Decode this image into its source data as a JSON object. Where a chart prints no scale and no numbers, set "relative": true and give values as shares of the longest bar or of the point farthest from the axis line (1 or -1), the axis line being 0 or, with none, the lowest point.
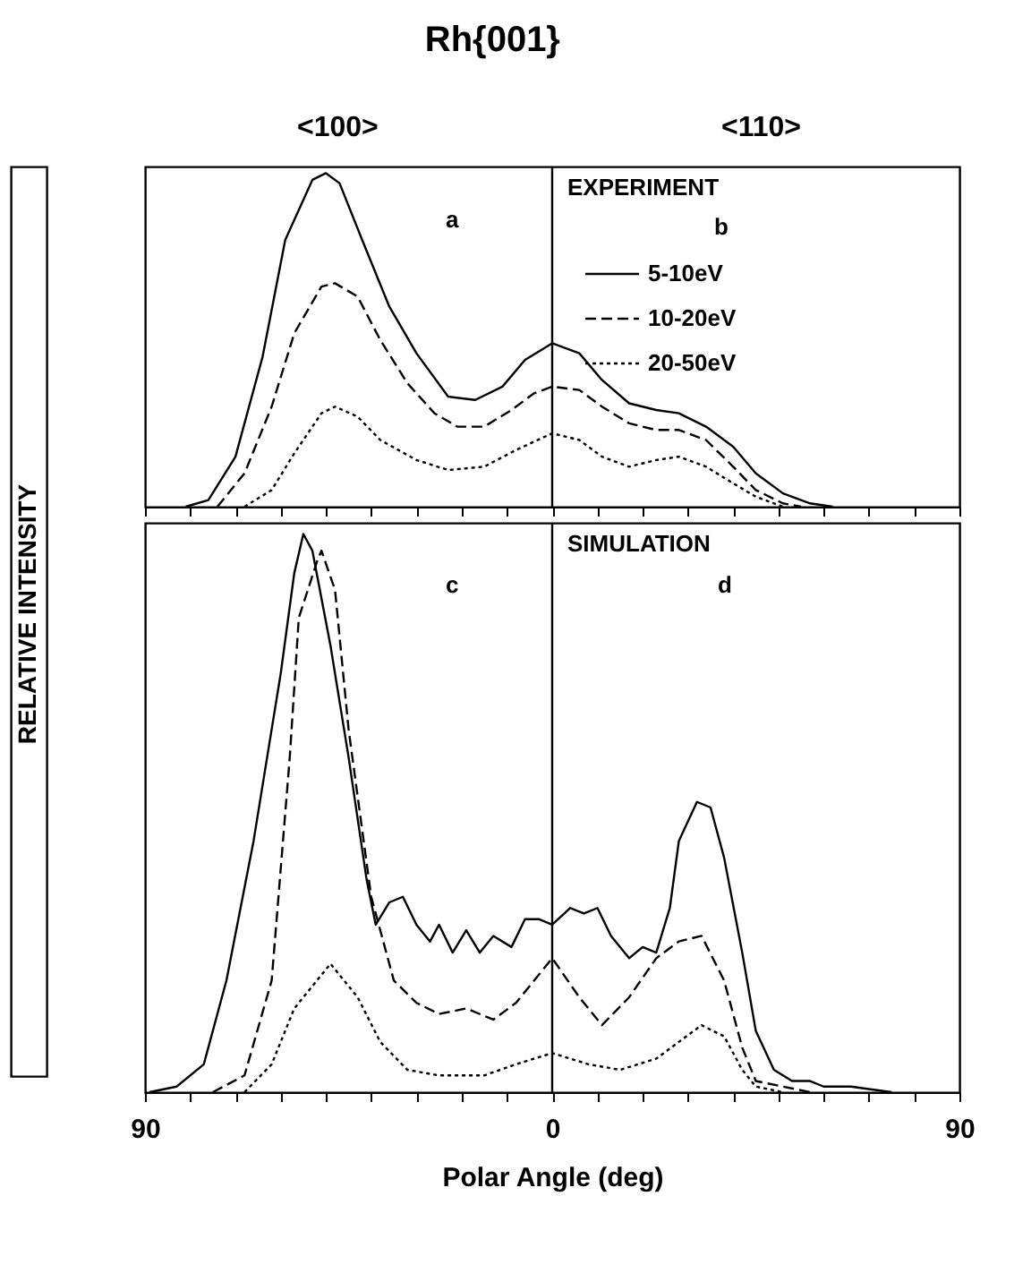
{
  "chart_data": [
    {
      "type": "line",
      "title": "Rh{001}",
      "ylabel": "RELATIVE INTENSITY",
      "relative": true,
      "legend": "top right",
      "tick_labels": false,
      "annotations": [
        "<100>",
        "<110>",
        "EXPERIMENT",
        "a",
        "b"
      ],
      "xlim": [
        -90,
        90
      ],
      "xticks": [
        {
          "value": -90,
          "label": null
        },
        {
          "value": -80,
          "label": null
        },
        {
          "value": -70,
          "label": null
        },
        {
          "value": -60,
          "label": null
        },
        {
          "value": -50,
          "label": null
        },
        {
          "value": -40,
          "label": null
        },
        {
          "value": -30,
          "label": null
        },
        {
          "value": -20,
          "label": null
        },
        {
          "value": -10,
          "label": null
        },
        {
          "value": 0,
          "label": null
        },
        {
          "value": 10,
          "label": null
        },
        {
          "value": 20,
          "label": null
        },
        {
          "value": 30,
          "label": null
        },
        {
          "value": 40,
          "label": null
        },
        {
          "value": 50,
          "label": null
        },
        {
          "value": 60,
          "label": null
        },
        {
          "value": 70,
          "label": null
        },
        {
          "value": 80,
          "label": null
        },
        {
          "value": 90,
          "label": null
        }
      ],
      "ref_lines": [
        {
          "axis": "x",
          "value": 0,
          "color": "#000000"
        }
      ],
      "series": [
        {
          "name": "5-10eV",
          "color": "#000000",
          "line_style": "solid",
          "x": [
            -81,
            -76,
            -70,
            -64,
            -59,
            -53,
            -50,
            -47,
            -42,
            -36,
            -30,
            -23,
            -17,
            -11,
            -6,
            0,
            6,
            11,
            17,
            23,
            28,
            34,
            40,
            45,
            51,
            57,
            62
          ],
          "values": [
            0,
            0.02,
            0.15,
            0.45,
            0.8,
            0.98,
            1.0,
            0.97,
            0.8,
            0.6,
            0.46,
            0.33,
            0.32,
            0.36,
            0.44,
            0.49,
            0.46,
            0.38,
            0.31,
            0.29,
            0.28,
            0.24,
            0.18,
            0.1,
            0.04,
            0.01,
            0
          ]
        },
        {
          "name": "10-20eV",
          "color": "#000000",
          "line_style": "dashed",
          "x": [
            -74,
            -68,
            -62,
            -57,
            -51,
            -48,
            -43,
            -38,
            -32,
            -26,
            -21,
            -15,
            -9,
            -4,
            0,
            6,
            11,
            17,
            23,
            28,
            34,
            40,
            45,
            51,
            55
          ],
          "values": [
            0,
            0.1,
            0.3,
            0.52,
            0.66,
            0.67,
            0.63,
            0.5,
            0.37,
            0.28,
            0.24,
            0.24,
            0.29,
            0.34,
            0.36,
            0.35,
            0.3,
            0.25,
            0.23,
            0.23,
            0.2,
            0.12,
            0.05,
            0.01,
            0
          ]
        },
        {
          "name": "20-50eV",
          "color": "#000000",
          "line_style": "dotted",
          "x": [
            -68,
            -62,
            -57,
            -51,
            -48,
            -43,
            -38,
            -30,
            -23,
            -15,
            -8,
            0,
            6,
            11,
            17,
            23,
            28,
            34,
            40,
            45,
            51
          ],
          "values": [
            0,
            0.05,
            0.16,
            0.28,
            0.3,
            0.27,
            0.2,
            0.14,
            0.11,
            0.12,
            0.17,
            0.22,
            0.2,
            0.15,
            0.12,
            0.14,
            0.15,
            0.12,
            0.07,
            0.03,
            0
          ]
        }
      ]
    },
    {
      "type": "line",
      "xlabel": "Polar Angle (deg)",
      "relative": true,
      "tick_labels": "x",
      "annotations": [
        "SIMULATION",
        "c",
        "d"
      ],
      "xlim": [
        -90,
        90
      ],
      "xticks": [
        {
          "value": -90,
          "label": "90"
        },
        {
          "value": -80,
          "label": null
        },
        {
          "value": -70,
          "label": null
        },
        {
          "value": -60,
          "label": null
        },
        {
          "value": -50,
          "label": null
        },
        {
          "value": -40,
          "label": null
        },
        {
          "value": -30,
          "label": null
        },
        {
          "value": -20,
          "label": null
        },
        {
          "value": -10,
          "label": null
        },
        0,
        {
          "value": 10,
          "label": null
        },
        {
          "value": 20,
          "label": null
        },
        {
          "value": 30,
          "label": null
        },
        {
          "value": 40,
          "label": null
        },
        {
          "value": 50,
          "label": null
        },
        {
          "value": 60,
          "label": null
        },
        {
          "value": 70,
          "label": null
        },
        {
          "value": 80,
          "label": null
        },
        {
          "value": 90,
          "label": "90"
        }
      ],
      "ref_lines": [
        {
          "axis": "x",
          "value": 0,
          "color": "#000000"
        }
      ],
      "series": [
        {
          "color": "#000000",
          "line_style": "solid",
          "x": [
            -89,
            -83,
            -77,
            -72,
            -66,
            -60,
            -57,
            -55,
            -53,
            -49,
            -45,
            -41,
            -39,
            -36,
            -33,
            -30,
            -27,
            -25,
            -22,
            -19,
            -16,
            -13,
            -9,
            -6,
            -3,
            0,
            4,
            7,
            10,
            13,
            17,
            20,
            23,
            26,
            28,
            32,
            35,
            38,
            42,
            45,
            49,
            53,
            57,
            60,
            66,
            75
          ],
          "values": [
            0,
            0.01,
            0.05,
            0.2,
            0.45,
            0.75,
            0.93,
            1.0,
            0.97,
            0.8,
            0.6,
            0.38,
            0.3,
            0.34,
            0.35,
            0.3,
            0.27,
            0.3,
            0.25,
            0.29,
            0.25,
            0.28,
            0.26,
            0.31,
            0.31,
            0.3,
            0.33,
            0.32,
            0.33,
            0.28,
            0.24,
            0.26,
            0.25,
            0.33,
            0.45,
            0.52,
            0.51,
            0.42,
            0.25,
            0.11,
            0.04,
            0.02,
            0.02,
            0.01,
            0.01,
            0
          ]
        },
        {
          "color": "#000000",
          "line_style": "dashed",
          "x": [
            -75,
            -68,
            -62,
            -58,
            -56,
            -52,
            -51,
            -48,
            -45,
            -40,
            -35,
            -30,
            -25,
            -19,
            -13,
            -8,
            0,
            6,
            11,
            17,
            23,
            28,
            33,
            38,
            42,
            45,
            51,
            57
          ],
          "values": [
            0,
            0.03,
            0.2,
            0.6,
            0.85,
            0.95,
            0.97,
            0.9,
            0.65,
            0.35,
            0.2,
            0.16,
            0.14,
            0.15,
            0.13,
            0.16,
            0.24,
            0.17,
            0.12,
            0.17,
            0.24,
            0.27,
            0.28,
            0.2,
            0.08,
            0.02,
            0.01,
            0
          ]
        },
        {
          "color": "#000000",
          "line_style": "dotted",
          "x": [
            -68,
            -62,
            -57,
            -49,
            -43,
            -38,
            -32,
            -25,
            -15,
            -8,
            0,
            8,
            15,
            23,
            28,
            33,
            38,
            42,
            45,
            51
          ],
          "values": [
            0,
            0.05,
            0.15,
            0.23,
            0.17,
            0.09,
            0.04,
            0.03,
            0.03,
            0.05,
            0.07,
            0.05,
            0.04,
            0.06,
            0.09,
            0.12,
            0.1,
            0.04,
            0.01,
            0
          ]
        }
      ]
    }
  ]
}
